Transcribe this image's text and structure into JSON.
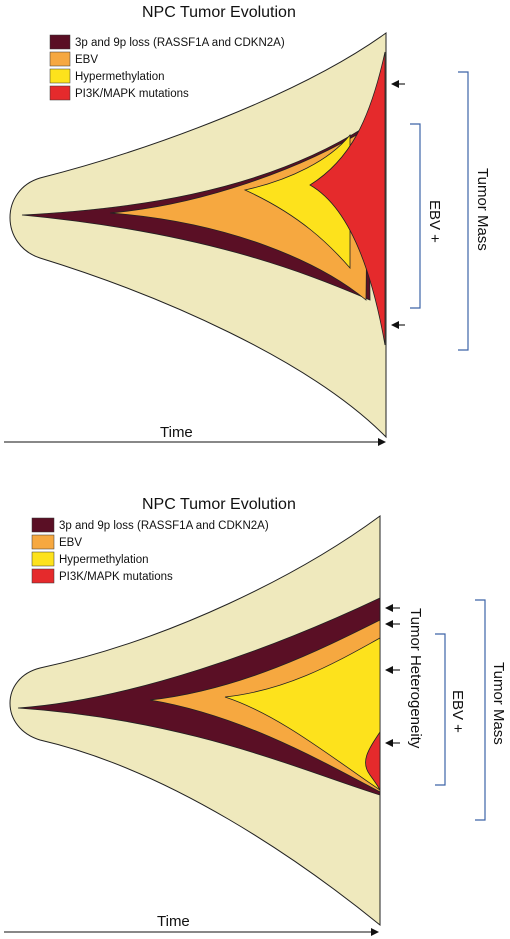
{
  "colors": {
    "background_region": "#efe9bd",
    "loss_3p9p": "#5a0f25",
    "ebv": "#f6a840",
    "hypermethylation": "#fde21c",
    "pi3k_mapk": "#e52a2c",
    "bracket": "#3d64a8"
  },
  "panel_top": {
    "title": "NPC Tumor Evolution",
    "legend": [
      {
        "label": "3p and 9p loss (RASSF1A and CDKN2A)"
      },
      {
        "label": "EBV"
      },
      {
        "label": "Hypermethylation"
      },
      {
        "label": "PI3K/MAPK mutations"
      }
    ],
    "time_label": "Time",
    "ebv_label": "EBV +",
    "tumor_mass_label": "Tumor Mass"
  },
  "panel_bottom": {
    "title": "NPC Tumor Evolution",
    "legend": [
      {
        "label": "3p and 9p loss (RASSF1A and CDKN2A)"
      },
      {
        "label": "EBV"
      },
      {
        "label": "Hypermethylation"
      },
      {
        "label": "PI3K/MAPK mutations"
      }
    ],
    "time_label": "Time",
    "heterogeneity_label": "Tumor  Heterogeneity",
    "ebv_label": "EBV +",
    "tumor_mass_label": "Tumor Mass"
  }
}
